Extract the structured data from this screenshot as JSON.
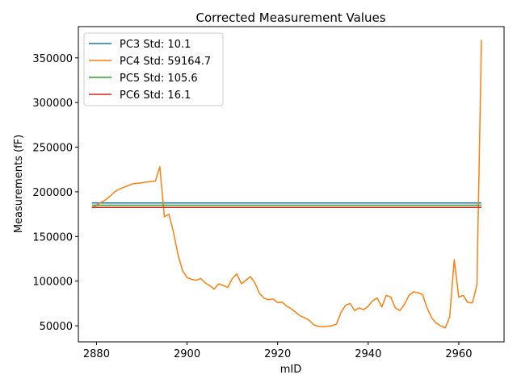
{
  "chart_data": {
    "type": "line",
    "title": "Corrected Measurement Values",
    "xlabel": "mID",
    "ylabel": "Measurements (fF)",
    "xlim": [
      2876,
      2970
    ],
    "ylim": [
      32000,
      385000
    ],
    "xticks": [
      2880,
      2900,
      2920,
      2940,
      2960
    ],
    "yticks": [
      50000,
      100000,
      150000,
      200000,
      250000,
      300000,
      350000
    ],
    "grid": false,
    "legend_position": "top-left",
    "series": [
      {
        "name": "PC3 Std: 10.1",
        "color": "#1f77b4",
        "x": [
          2879,
          2965
        ],
        "y": [
          187500,
          187500
        ]
      },
      {
        "name": "PC4 Std: 59164.7",
        "color": "#ff7f0e",
        "x": [
          2879,
          2880,
          2881,
          2882,
          2883,
          2884,
          2885,
          2886,
          2887,
          2888,
          2889,
          2890,
          2891,
          2892,
          2893,
          2894,
          2895,
          2896,
          2897,
          2898,
          2899,
          2900,
          2901,
          2902,
          2903,
          2904,
          2905,
          2906,
          2907,
          2908,
          2909,
          2910,
          2911,
          2912,
          2913,
          2914,
          2915,
          2916,
          2917,
          2918,
          2919,
          2920,
          2921,
          2922,
          2923,
          2924,
          2925,
          2926,
          2927,
          2928,
          2929,
          2930,
          2931,
          2932,
          2933,
          2934,
          2935,
          2936,
          2937,
          2938,
          2939,
          2940,
          2941,
          2942,
          2943,
          2944,
          2945,
          2946,
          2947,
          2948,
          2949,
          2950,
          2951,
          2952,
          2953,
          2954,
          2955,
          2956,
          2957,
          2958,
          2959,
          2960,
          2961,
          2962,
          2963,
          2964,
          2965
        ],
        "y": [
          182000,
          185000,
          188000,
          191000,
          195000,
          200000,
          203000,
          205000,
          207000,
          209000,
          209500,
          210000,
          211000,
          211500,
          212000,
          228000,
          172000,
          175000,
          155000,
          130000,
          112000,
          104000,
          102000,
          101000,
          103000,
          98000,
          95000,
          91000,
          97000,
          95000,
          93000,
          103000,
          108000,
          97000,
          101000,
          105000,
          98000,
          86000,
          81000,
          79000,
          80000,
          76000,
          76500,
          72000,
          69000,
          65000,
          61000,
          59000,
          56000,
          51000,
          49500,
          49000,
          49500,
          50000,
          52000,
          65000,
          73000,
          75000,
          67000,
          70000,
          68000,
          72000,
          78000,
          81000,
          71000,
          84000,
          82000,
          70000,
          67000,
          74000,
          84000,
          88000,
          87000,
          85000,
          70000,
          59000,
          53000,
          50000,
          47500,
          60000,
          124000,
          82000,
          84000,
          76000,
          75500,
          96000,
          370000
        ]
      },
      {
        "name": "PC5 Std: 105.6",
        "color": "#2ca02c",
        "x": [
          2879,
          2965
        ],
        "y": [
          185000,
          185000
        ]
      },
      {
        "name": "PC6 Std: 16.1",
        "color": "#d62728",
        "x": [
          2879,
          2965
        ],
        "y": [
          182500,
          182500
        ]
      }
    ]
  }
}
